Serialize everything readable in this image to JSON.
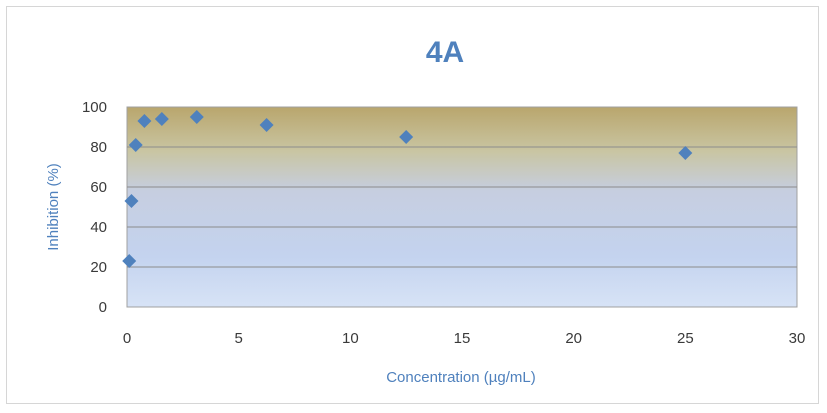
{
  "chart_data": {
    "type": "scatter",
    "title": "4A",
    "xlabel": "Concentration (µg/mL)",
    "ylabel": "Inhibition (%)",
    "xlim": [
      0,
      30
    ],
    "ylim": [
      0,
      100
    ],
    "xticks": [
      0,
      5,
      10,
      15,
      20,
      25,
      30
    ],
    "yticks": [
      0,
      20,
      40,
      60,
      80,
      100
    ],
    "grid": "horizontal",
    "legend": "none",
    "marker_color": "#4f81bd",
    "series": [
      {
        "x": [
          0.1,
          0.2,
          0.39,
          0.78,
          1.56,
          3.125,
          6.25,
          12.5,
          25
        ],
        "y": [
          23,
          53,
          81,
          93,
          94,
          95,
          91,
          85,
          77
        ]
      }
    ]
  }
}
